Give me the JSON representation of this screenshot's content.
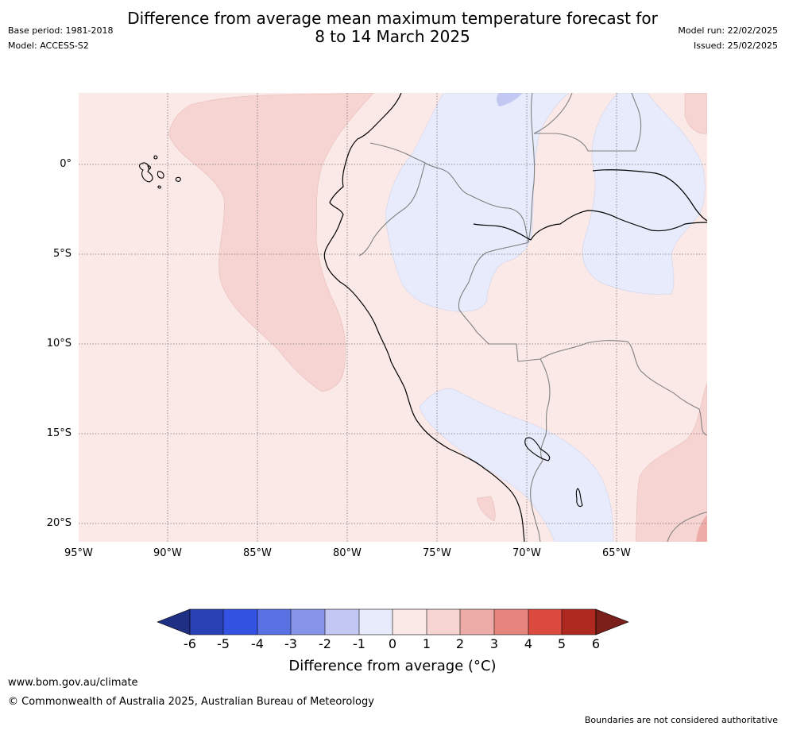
{
  "header": {
    "title_line1": "Difference from average mean maximum temperature forecast for",
    "title_line2": "8 to 14 March 2025",
    "base_period": "Base period: 1981-2018",
    "model": "Model: ACCESS-S2",
    "model_run": "Model run: 22/02/2025",
    "issued": "Issued: 25/02/2025"
  },
  "map": {
    "lon_labels": [
      "95°W",
      "90°W",
      "85°W",
      "80°W",
      "75°W",
      "70°W",
      "65°W"
    ],
    "lat_labels": [
      "0°",
      "5°S",
      "10°S",
      "15°S",
      "20°S"
    ],
    "background_color": "#fbe9e7"
  },
  "colorbar": {
    "title": "Difference from average (°C)",
    "ticks": [
      "-6",
      "-5",
      "-4",
      "-3",
      "-2",
      "-1",
      "0",
      "1",
      "2",
      "3",
      "4",
      "5",
      "6"
    ],
    "colors": [
      "#1f2f84",
      "#2a41b5",
      "#3452e1",
      "#5a71e4",
      "#8695e9",
      "#c2c8f2",
      "#e8ebfb",
      "#fbe9e7",
      "#f5d4d2",
      "#edaca8",
      "#e5857d",
      "#da4a3e",
      "#ae2a21",
      "#7a1f1a"
    ]
  },
  "footer": {
    "url": "www.bom.gov.au/climate",
    "copyright": "© Commonwealth of Australia 2025, Australian Bureau of Meteorology",
    "disclaimer": "Boundaries are not considered authoritative"
  }
}
